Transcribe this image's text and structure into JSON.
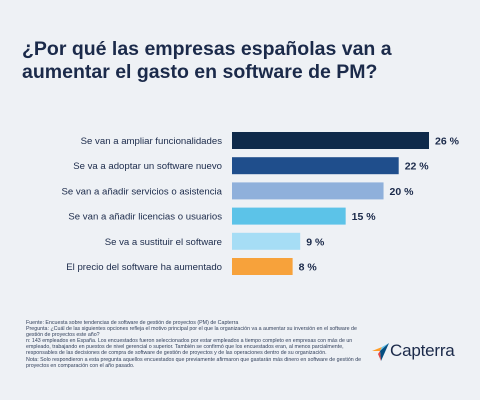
{
  "title": "¿Por qué las empresas españolas van a aumentar el gasto en software de PM?",
  "chart_data": {
    "type": "bar",
    "orientation": "horizontal",
    "categories": [
      "Se van a ampliar funcionalidades",
      "Se va a adoptar un software nuevo",
      "Se van a añadir servicios o asistencia",
      "Se van a añadir licencias o usuarios",
      "Se va a sustituir el software",
      "El precio del software ha aumentado"
    ],
    "values": [
      26,
      22,
      20,
      15,
      9,
      8
    ],
    "value_labels": [
      "26 %",
      "22 %",
      "20 %",
      "15 %",
      "9 %",
      "8 %"
    ],
    "colors": [
      "#0f2a4a",
      "#1f4e8c",
      "#8fb0db",
      "#5cc3e8",
      "#a6ddf5",
      "#f7a23b"
    ],
    "xlim": [
      0,
      26
    ],
    "grid": false,
    "legend": "none"
  },
  "footnote": [
    "Fuente: Encuesta sobre tendencias de software de gestión de proyectos (PM) de Capterra",
    "Pregunta: ¿Cuál de las siguientes opciones refleja el motivo principal por el que la organización va a aumentar su inversión en el software de gestión de proyectos este año?",
    "n: 143 empleados en España. Los encuestados fueron seleccionados por estar empleados a tiempo completo en empresas con más de un empleado, trabajando en puestos de nivel gerencial o superior. También se confirmó que los encuestados eran, al menos parcialmente, responsables de las decisiones de compra de software de gestión de proyectos y de las operaciones dentro de su organización.",
    "Nota: Solo respondieron a esta pregunta aquellos encuestados que previamente afirmaron que gastarán más dinero en software de gestión de proyectos en comparación con el año pasado."
  ],
  "logo": {
    "text": "Capterra",
    "colors": [
      "#ff9d28",
      "#68c5ed",
      "#044d80",
      "#e54747"
    ]
  }
}
